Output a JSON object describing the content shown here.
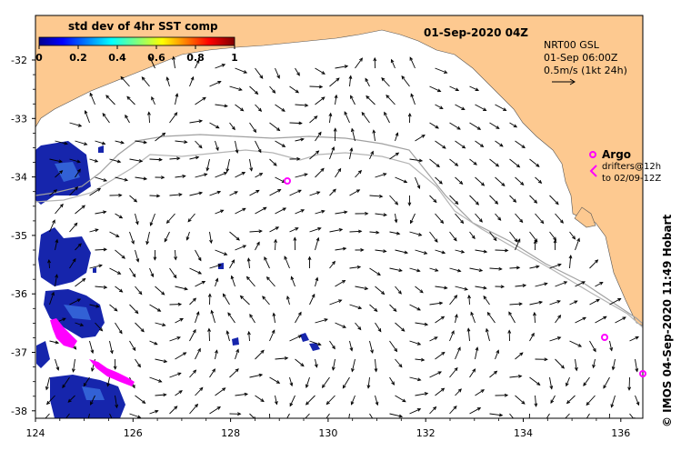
{
  "map": {
    "date_title": "01-Sep-2020 04Z",
    "colorbar": {
      "title": "std dev of 4hr SST comp",
      "ticks": [
        "0",
        "0.2",
        "0.4",
        "0.6",
        "0.8",
        "1"
      ]
    },
    "current_legend": {
      "line1": "NRT00 GSL",
      "line2": "01-Sep 06:00Z",
      "line3": "0.5m/s (1kt 24h)"
    },
    "argo": {
      "label": "Argo",
      "drifters_line1": "drifters@12h",
      "drifters_line2": "to 02/09-12Z"
    },
    "credit": "© IMOS 04-Sep-2020 11:49 Hobart",
    "x_ticks": [
      "124",
      "126",
      "128",
      "130",
      "132",
      "134",
      "136"
    ],
    "y_ticks": [
      "-32",
      "-33",
      "-34",
      "-35",
      "-36",
      "-37",
      "-38"
    ],
    "colors": {
      "land": "#fdc990",
      "argo": "#ff00ff",
      "sst_low": "#0000a0",
      "contour": "#a0a0a0"
    }
  }
}
